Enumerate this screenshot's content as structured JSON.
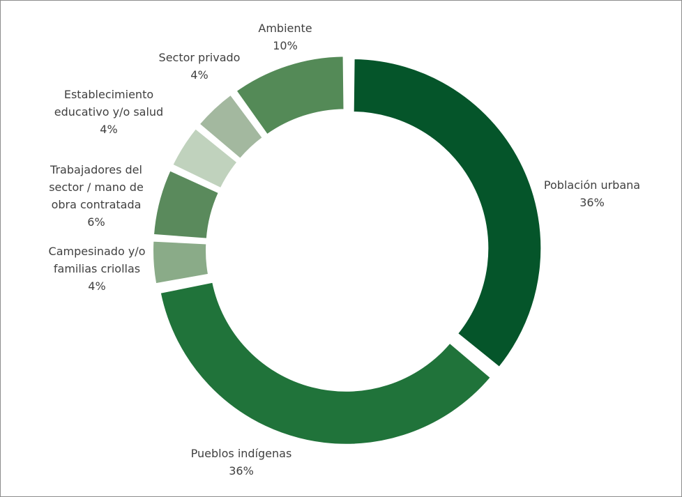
{
  "chart_data": {
    "type": "donut",
    "categories": [
      "Población urbana",
      "Pueblos indígenas",
      "Campesinado y/o familias criollas",
      "Trabajadores del sector / mano de obra contratada",
      "Establecimiento educativo y/o salud",
      "Sector privado",
      "Ambiente"
    ],
    "values": [
      36,
      36,
      4,
      6,
      4,
      4,
      10
    ],
    "value_labels": [
      "36%",
      "36%",
      "4%",
      "6%",
      "4%",
      "4%",
      "10%"
    ],
    "colors": [
      "#05552a",
      "#20733a",
      "#8aab88",
      "#5a8a5c",
      "#c0d2bd",
      "#a3b89f",
      "#548a57"
    ]
  }
}
